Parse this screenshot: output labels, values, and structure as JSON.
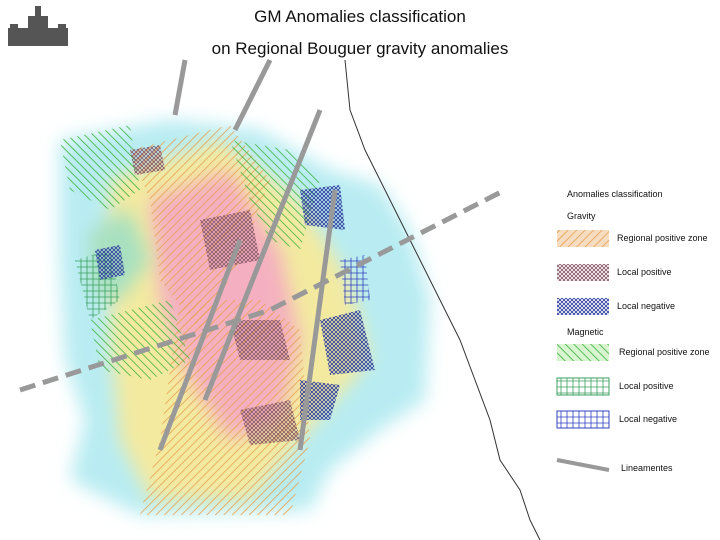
{
  "header": {
    "title": "GM Anomalies classification",
    "subtitle": "on Regional Bouguer gravity anomalies"
  },
  "legend": {
    "title": "Anomalies classification",
    "groups": [
      {
        "name": "Gravity",
        "items": [
          "Regional positive zone",
          "Local positive",
          "Local negative"
        ]
      },
      {
        "name": "Magnetic",
        "items": [
          "Regional positive zone",
          "Local positive",
          "Local negative"
        ]
      }
    ],
    "lineaments": "Lineamentes"
  }
}
